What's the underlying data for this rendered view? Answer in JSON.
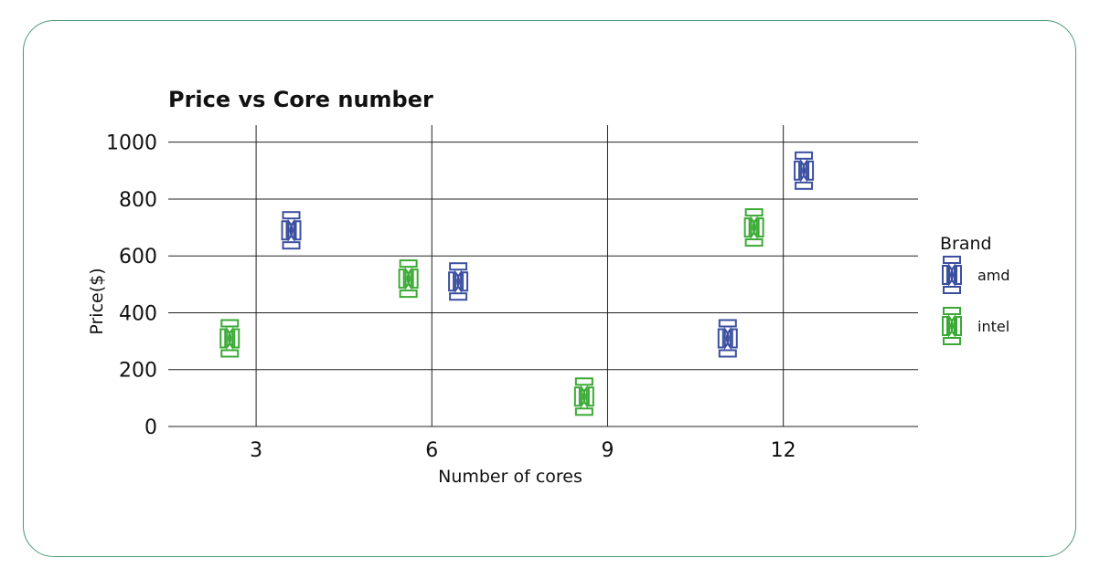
{
  "chart_data": {
    "type": "scatter",
    "title": "Price vs Core number",
    "xlabel": "Number of cores",
    "ylabel": "Price($)",
    "xlim": [
      1.5,
      14.3
    ],
    "ylim": [
      0,
      1060
    ],
    "xticks": [
      3,
      6,
      9,
      12
    ],
    "yticks": [
      0,
      200,
      400,
      600,
      800,
      1000
    ],
    "grid": true,
    "legend": {
      "title": "Brand",
      "placement": "right"
    },
    "series": [
      {
        "name": "amd",
        "color": "#3b4fa0",
        "marker": "bracket-glyph",
        "points": [
          {
            "x": 3.6,
            "y": 690
          },
          {
            "x": 6.45,
            "y": 510
          },
          {
            "x": 11.05,
            "y": 310
          },
          {
            "x": 12.35,
            "y": 900
          }
        ]
      },
      {
        "name": "intel",
        "color": "#3aaa35",
        "marker": "bracket-glyph",
        "points": [
          {
            "x": 2.55,
            "y": 310
          },
          {
            "x": 5.6,
            "y": 520
          },
          {
            "x": 8.6,
            "y": 105
          },
          {
            "x": 11.5,
            "y": 700
          }
        ]
      }
    ]
  }
}
